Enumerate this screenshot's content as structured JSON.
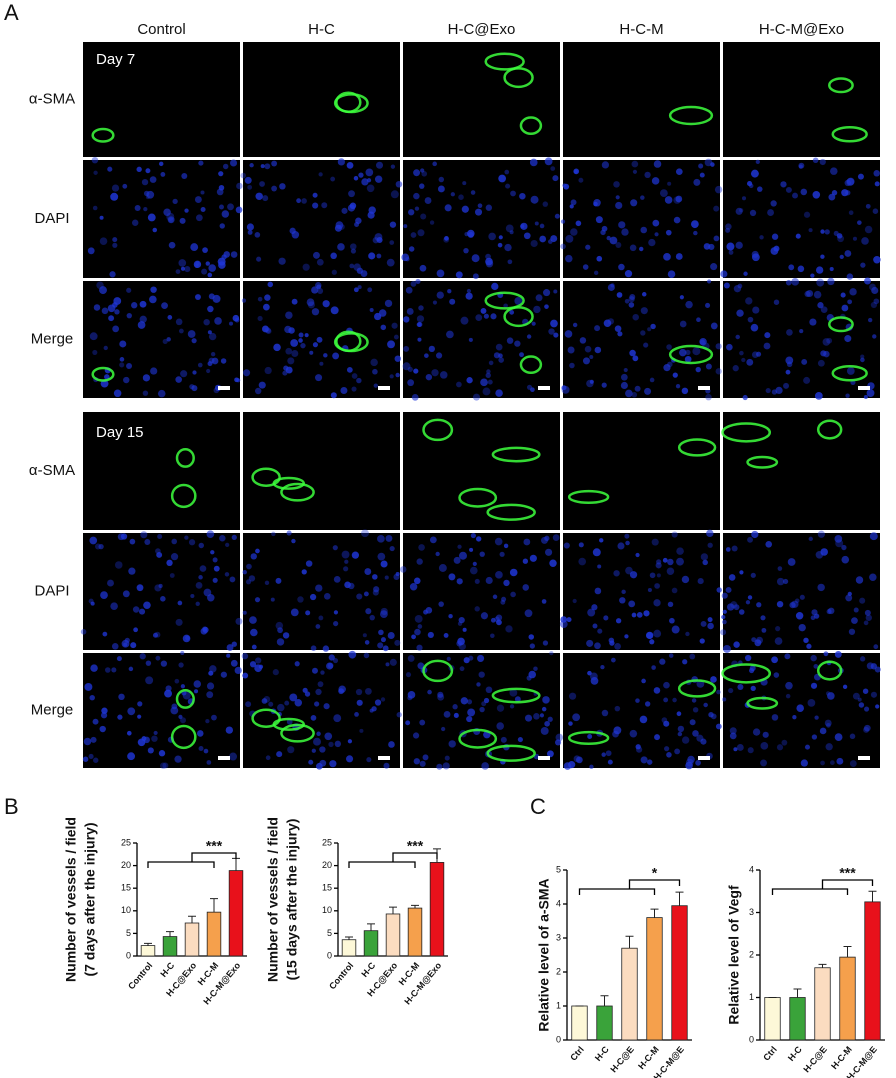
{
  "figure": {
    "panel_labels": [
      "A",
      "B",
      "C"
    ],
    "columns": [
      "Control",
      "H-C",
      "H-C@Exo",
      "H-C-M",
      "H-C-M@Exo"
    ],
    "row_labels": [
      "α-SMA",
      "DAPI",
      "Merge",
      "α-SMA",
      "DAPI",
      "Merge"
    ],
    "day_labels": [
      "Day 7",
      "Day 15"
    ]
  },
  "chart_data": [
    {
      "type": "bar",
      "ylabel": [
        "Number of vessels / field",
        "(7 days after the injury)"
      ],
      "categories": [
        "Control",
        "H-C",
        "H-C@Exo",
        "H-C-M",
        "H-C-M@Exo"
      ],
      "values": [
        2.3,
        4.3,
        7.3,
        9.7,
        18.9
      ],
      "errors": [
        0.5,
        1.1,
        1.5,
        3.0,
        2.7
      ],
      "colors": [
        "#fdf8d8",
        "#3aa33a",
        "#fbdcc0",
        "#f5a04c",
        "#e8111b"
      ],
      "ylim": [
        0,
        25
      ],
      "yticks": [
        0,
        5,
        10,
        15,
        20,
        25
      ],
      "significance": "***"
    },
    {
      "type": "bar",
      "ylabel": [
        "Number of vessels / field",
        "(15 days after the injury)"
      ],
      "categories": [
        "Control",
        "H-C",
        "H-C@Exo",
        "H-C-M",
        "H-C-M@Exo"
      ],
      "values": [
        3.6,
        5.6,
        9.3,
        10.6,
        20.7
      ],
      "errors": [
        0.6,
        1.5,
        1.5,
        0.6,
        3.0
      ],
      "colors": [
        "#fdf8d8",
        "#3aa33a",
        "#fbdcc0",
        "#f5a04c",
        "#e8111b"
      ],
      "ylim": [
        0,
        25
      ],
      "yticks": [
        0,
        5,
        10,
        15,
        20,
        25
      ],
      "significance": "***"
    },
    {
      "type": "bar",
      "ylabel": [
        "Relative level of a-SMA"
      ],
      "categories": [
        "Ctrl",
        "H-C",
        "H-C@E",
        "H-C-M",
        "H-C-M@E"
      ],
      "values": [
        1.0,
        1.0,
        2.7,
        3.6,
        3.95
      ],
      "errors": [
        0,
        0.3,
        0.35,
        0.25,
        0.4
      ],
      "colors": [
        "#fdf8d8",
        "#3aa33a",
        "#fbdcc0",
        "#f5a04c",
        "#e8111b"
      ],
      "ylim": [
        0,
        5
      ],
      "yticks": [
        0,
        1,
        2,
        3,
        4,
        5
      ],
      "significance": "*"
    },
    {
      "type": "bar",
      "ylabel": [
        "Relative level of Vegf"
      ],
      "categories": [
        "Ctrl",
        "H-C",
        "H-C@E",
        "H-C-M",
        "H-C-M@E"
      ],
      "values": [
        1.0,
        1.0,
        1.7,
        1.95,
        3.25
      ],
      "errors": [
        0,
        0.2,
        0.08,
        0.25,
        0.25
      ],
      "colors": [
        "#fdf8d8",
        "#3aa33a",
        "#fbdcc0",
        "#f5a04c",
        "#e8111b"
      ],
      "ylim": [
        0,
        4
      ],
      "yticks": [
        0,
        1,
        2,
        3,
        4
      ],
      "significance": "***"
    }
  ]
}
